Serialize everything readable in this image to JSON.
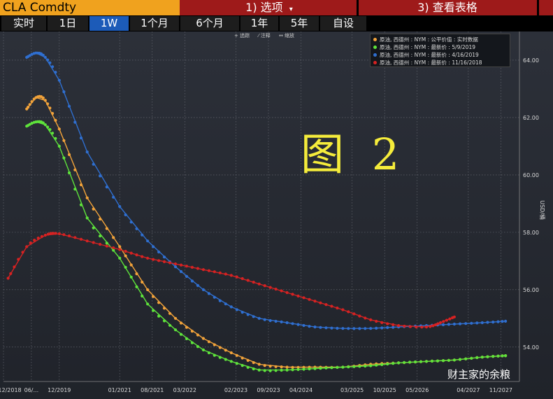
{
  "header": {
    "ticker": "CLA Comdty",
    "options_label": "1) 选项",
    "options_caret": "▾",
    "table_label": "3) 查看表格"
  },
  "ranges": [
    "实时",
    "1日",
    "1W",
    "1个月",
    "6个月",
    "1年",
    "5年",
    "自设"
  ],
  "active_range": "1W",
  "tools": [
    "+ 追踪",
    "⁄ 注释",
    "↔ 缩放"
  ],
  "overlay_text": "图 2",
  "watermark": "财主家的余粮",
  "colors": {
    "orange": "#f2a33a",
    "green": "#5ee33b",
    "blue": "#2f6fd0",
    "red": "#d62222"
  },
  "chart_data": {
    "type": "line",
    "ylabel": "USD/桶",
    "ylim": [
      52.8,
      65.0
    ],
    "yticks": [
      "54.00",
      "56.00",
      "58.00",
      "60.00",
      "62.00",
      "64.00"
    ],
    "xlim": [
      "2018-12",
      "2028-03"
    ],
    "xticks": [
      "12/2018",
      "06/...",
      "12/2019",
      "01/2021",
      "08/2021",
      "03/2022",
      "02/2023",
      "09/2023",
      "04/2024",
      "03/2025",
      "10/2025",
      "05/2026",
      "04/2027",
      "11/2027"
    ],
    "legend_position": "top-right",
    "series": [
      {
        "name": "原油, 西德州 : NYM : 公平价值 : 实时数据",
        "color": "orange",
        "points": [
          [
            "2019-05",
            62.3
          ],
          [
            "2019-07",
            62.7
          ],
          [
            "2019-09",
            62.6
          ],
          [
            "2019-12",
            61.6
          ],
          [
            "2020-06",
            59.2
          ],
          [
            "2021-01",
            57.5
          ],
          [
            "2021-07",
            56.0
          ],
          [
            "2022-01",
            55.0
          ],
          [
            "2022-07",
            54.3
          ],
          [
            "2023-01",
            53.8
          ],
          [
            "2023-07",
            53.4
          ],
          [
            "2024-01",
            53.3
          ],
          [
            "2024-07",
            53.3
          ],
          [
            "2025-01",
            53.3
          ],
          [
            "2025-07",
            53.4
          ],
          [
            "2026-01",
            53.45
          ],
          [
            "2026-07",
            53.5
          ],
          [
            "2027-01",
            53.55
          ],
          [
            "2027-07",
            53.65
          ],
          [
            "2027-12",
            53.7
          ]
        ]
      },
      {
        "name": "原油, 西德州 : NYM : 最新价 : 5/9/2019",
        "color": "green",
        "points": [
          [
            "2019-05",
            61.7
          ],
          [
            "2019-07",
            61.85
          ],
          [
            "2019-09",
            61.75
          ],
          [
            "2019-12",
            61.0
          ],
          [
            "2020-06",
            58.5
          ],
          [
            "2021-01",
            57.1
          ],
          [
            "2021-07",
            55.5
          ],
          [
            "2022-01",
            54.6
          ],
          [
            "2022-07",
            53.9
          ],
          [
            "2023-01",
            53.5
          ],
          [
            "2023-07",
            53.2
          ],
          [
            "2024-01",
            53.2
          ],
          [
            "2024-07",
            53.25
          ],
          [
            "2025-01",
            53.3
          ],
          [
            "2025-07",
            53.35
          ],
          [
            "2026-01",
            53.45
          ],
          [
            "2026-07",
            53.5
          ],
          [
            "2027-01",
            53.55
          ],
          [
            "2027-07",
            53.65
          ],
          [
            "2027-12",
            53.7
          ]
        ]
      },
      {
        "name": "原油, 西德州 : NYM : 最新价 : 4/16/2019",
        "color": "blue",
        "points": [
          [
            "2019-05",
            64.1
          ],
          [
            "2019-07",
            64.25
          ],
          [
            "2019-09",
            64.1
          ],
          [
            "2019-12",
            63.3
          ],
          [
            "2020-06",
            60.8
          ],
          [
            "2021-01",
            58.9
          ],
          [
            "2021-07",
            57.7
          ],
          [
            "2022-01",
            56.8
          ],
          [
            "2022-07",
            56.0
          ],
          [
            "2023-01",
            55.4
          ],
          [
            "2023-07",
            55.0
          ],
          [
            "2024-01",
            54.85
          ],
          [
            "2024-07",
            54.7
          ],
          [
            "2025-01",
            54.65
          ],
          [
            "2025-07",
            54.65
          ],
          [
            "2026-01",
            54.7
          ],
          [
            "2026-07",
            54.75
          ],
          [
            "2027-01",
            54.8
          ],
          [
            "2027-07",
            54.85
          ],
          [
            "2027-12",
            54.9
          ]
        ]
      },
      {
        "name": "原油, 西德州 : NYM : 最新价 : 11/16/2018",
        "color": "red",
        "points": [
          [
            "2019-01",
            56.4
          ],
          [
            "2019-05",
            57.5
          ],
          [
            "2019-09",
            57.9
          ],
          [
            "2019-12",
            57.95
          ],
          [
            "2020-06",
            57.7
          ],
          [
            "2021-01",
            57.4
          ],
          [
            "2021-07",
            57.1
          ],
          [
            "2022-01",
            56.9
          ],
          [
            "2022-07",
            56.7
          ],
          [
            "2023-01",
            56.5
          ],
          [
            "2023-07",
            56.2
          ],
          [
            "2024-01",
            55.9
          ],
          [
            "2024-07",
            55.6
          ],
          [
            "2025-01",
            55.3
          ],
          [
            "2025-07",
            54.95
          ],
          [
            "2026-01",
            54.75
          ],
          [
            "2026-07",
            54.7
          ],
          [
            "2026-10",
            54.85
          ],
          [
            "2027-01",
            55.05
          ]
        ]
      }
    ]
  }
}
